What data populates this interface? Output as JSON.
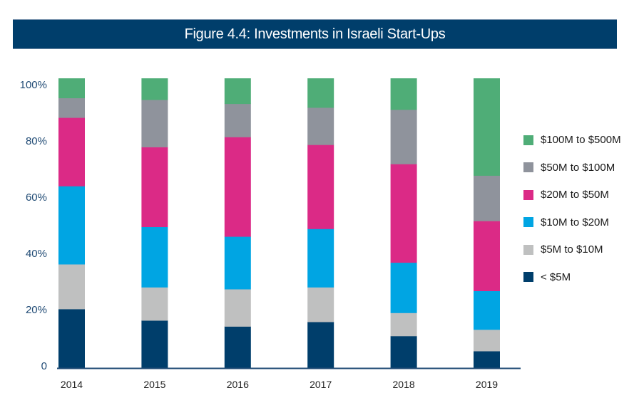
{
  "title": "Figure 4.4: Investments in Israeli Start-Ups",
  "colors": {
    "title_bar": "#003e6b",
    "axis": "#1f4a74"
  },
  "chart_data": {
    "type": "bar",
    "stacked": true,
    "normalized_percent": true,
    "title": "Figure 4.4: Investments in Israeli Start-Ups",
    "xlabel": "",
    "ylabel": "",
    "ylim": [
      0,
      100
    ],
    "y_ticks": [
      "0",
      "20%",
      "40%",
      "60%",
      "80%",
      "100%"
    ],
    "y_tick_values": [
      0,
      20,
      40,
      60,
      80,
      100
    ],
    "categories": [
      "2014",
      "2015",
      "2016",
      "2017",
      "2018",
      "2019"
    ],
    "grid": false,
    "legend_position": "right",
    "series": [
      {
        "name": "< $5M",
        "color": "#003e6b",
        "values": [
          20.4,
          16.5,
          14.4,
          16.0,
          11.1,
          5.9
        ]
      },
      {
        "name": "$5M to $10M",
        "color": "#bfc0c0",
        "values": [
          15.5,
          11.5,
          12.9,
          12.0,
          8.0,
          7.4
        ]
      },
      {
        "name": "$10M to $20M",
        "color": "#00a5e3",
        "values": [
          27.0,
          20.9,
          18.2,
          20.2,
          17.4,
          13.4
        ]
      },
      {
        "name": "$20M to $50M",
        "color": "#db2a86",
        "values": [
          23.6,
          27.6,
          34.4,
          29.1,
          34.1,
          24.2
        ]
      },
      {
        "name": "$50M to $100M",
        "color": "#8f939c",
        "values": [
          6.8,
          16.4,
          11.5,
          12.9,
          18.8,
          15.7
        ]
      },
      {
        "name": "$100M to $500M",
        "color": "#4fad77",
        "values": [
          6.8,
          7.4,
          8.8,
          10.1,
          10.8,
          33.6
        ]
      }
    ],
    "legend_order": [
      "$100M to $500M",
      "$50M to $100M",
      "$20M to $50M",
      "$10M to $20M",
      "$5M to $10M",
      "< $5M"
    ]
  }
}
